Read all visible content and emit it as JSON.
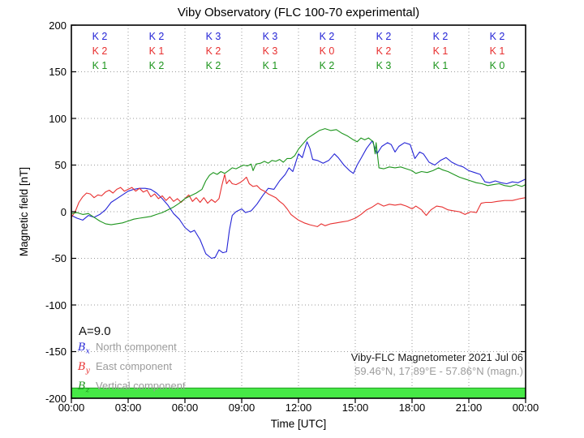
{
  "colors": {
    "blue": "#2424d6",
    "red": "#e83030",
    "green": "#1d951d",
    "bar_green": "#46e846",
    "bar_green_edge": "#1f9e1f",
    "grid": "#9a9a9a",
    "frame": "#000000"
  },
  "chart_data": {
    "type": "line",
    "title": "Viby Observatory (FLC 100-70 experimental)",
    "xlabel": "Time [UTC]",
    "ylabel": "Magnetic field [nT]",
    "xlim_hours": [
      0,
      24
    ],
    "ylim": [
      -200,
      200
    ],
    "grid": "dotted",
    "legend_position": "lower-left",
    "xtick_hours": [
      0,
      3,
      6,
      9,
      12,
      15,
      18,
      21,
      24
    ],
    "xtick_labels": [
      "00:00",
      "03:00",
      "06:00",
      "09:00",
      "12:00",
      "15:00",
      "18:00",
      "21:00",
      "00:00"
    ],
    "ytick_values": [
      200,
      150,
      100,
      50,
      0,
      -50,
      -100,
      -150,
      -200
    ],
    "ytick_labels": [
      "200",
      "150",
      "100",
      "50",
      "0",
      "-50",
      "-100",
      "-150",
      "-200"
    ],
    "a_index_label": "A=9.0",
    "k_index_rows": [
      {
        "series": "Bx",
        "color_key": "blue",
        "values": [
          "K 2",
          "K 2",
          "K 3",
          "K 3",
          "K 2",
          "K 2",
          "K 2",
          "K 2"
        ]
      },
      {
        "series": "By",
        "color_key": "red",
        "values": [
          "K 2",
          "K 1",
          "K 2",
          "K 3",
          "K 0",
          "K 2",
          "K 1",
          "K 1"
        ]
      },
      {
        "series": "Bz",
        "color_key": "green",
        "values": [
          "K 1",
          "K 2",
          "K 2",
          "K 1",
          "K 2",
          "K 3",
          "K 1",
          "K 0"
        ]
      }
    ],
    "legend": [
      {
        "symbol": "B",
        "sub": "x",
        "label": "North component",
        "color_key": "blue"
      },
      {
        "symbol": "B",
        "sub": "y",
        "label": "East component",
        "color_key": "red"
      },
      {
        "symbol": "B",
        "sub": "z",
        "label": "Vertical component",
        "color_key": "green"
      }
    ],
    "annotation_lines": [
      "Viby-FLC Magnetometer 2021 Jul 06",
      "59.46°N, 17.89°E - 57.86°N (magn.)"
    ],
    "availability_bar": {
      "color_key": "bar_green",
      "x_hours": [
        0,
        24
      ],
      "y_range_nT": [
        -200,
        -189
      ]
    },
    "series": [
      {
        "name": "Bx North component",
        "color_key": "blue",
        "points": [
          [
            0,
            -4
          ],
          [
            0.3,
            -7
          ],
          [
            0.6,
            -9
          ],
          [
            0.9,
            -4
          ],
          [
            1.2,
            -6
          ],
          [
            1.5,
            -3
          ],
          [
            1.8,
            2
          ],
          [
            2.1,
            10
          ],
          [
            2.4,
            14
          ],
          [
            2.7,
            18
          ],
          [
            3,
            22
          ],
          [
            3.3,
            24
          ],
          [
            3.6,
            25
          ],
          [
            3.9,
            25
          ],
          [
            4.2,
            24
          ],
          [
            4.5,
            20
          ],
          [
            4.8,
            14
          ],
          [
            5.1,
            7
          ],
          [
            5.4,
            -2
          ],
          [
            5.7,
            -8
          ],
          [
            6,
            -17
          ],
          [
            6.3,
            -22
          ],
          [
            6.5,
            -20
          ],
          [
            6.8,
            -30
          ],
          [
            7.1,
            -45
          ],
          [
            7.4,
            -50
          ],
          [
            7.6,
            -49
          ],
          [
            7.8,
            -41
          ],
          [
            8,
            -44
          ],
          [
            8.2,
            -43
          ],
          [
            8.35,
            -20
          ],
          [
            8.5,
            -4
          ],
          [
            8.7,
            0
          ],
          [
            9,
            3
          ],
          [
            9.2,
            -1
          ],
          [
            9.5,
            1
          ],
          [
            9.8,
            8
          ],
          [
            10.1,
            17
          ],
          [
            10.4,
            25
          ],
          [
            10.7,
            24
          ],
          [
            11,
            33
          ],
          [
            11.3,
            40
          ],
          [
            11.5,
            47
          ],
          [
            11.7,
            43
          ],
          [
            12,
            62
          ],
          [
            12.2,
            58
          ],
          [
            12.45,
            75
          ],
          [
            12.6,
            68
          ],
          [
            12.75,
            56
          ],
          [
            13,
            55
          ],
          [
            13.3,
            52
          ],
          [
            13.6,
            55
          ],
          [
            13.9,
            62
          ],
          [
            14.1,
            58
          ],
          [
            14.4,
            50
          ],
          [
            14.7,
            44
          ],
          [
            14.9,
            41
          ],
          [
            15.1,
            50
          ],
          [
            15.3,
            57
          ],
          [
            15.6,
            68
          ],
          [
            15.9,
            76
          ],
          [
            16.15,
            62
          ],
          [
            16.4,
            70
          ],
          [
            16.7,
            74
          ],
          [
            16.9,
            72
          ],
          [
            17.1,
            64
          ],
          [
            17.3,
            70
          ],
          [
            17.6,
            74
          ],
          [
            17.9,
            72
          ],
          [
            18.15,
            57
          ],
          [
            18.4,
            64
          ],
          [
            18.6,
            62
          ],
          [
            18.9,
            53
          ],
          [
            19.2,
            50
          ],
          [
            19.5,
            55
          ],
          [
            19.8,
            58
          ],
          [
            20.1,
            53
          ],
          [
            20.4,
            50
          ],
          [
            20.7,
            48
          ],
          [
            21,
            44
          ],
          [
            21.3,
            42
          ],
          [
            21.6,
            40
          ],
          [
            21.85,
            32
          ],
          [
            22.1,
            31
          ],
          [
            22.4,
            33
          ],
          [
            22.7,
            31
          ],
          [
            23,
            30
          ],
          [
            23.3,
            32
          ],
          [
            23.6,
            31
          ],
          [
            24,
            35
          ]
        ]
      },
      {
        "name": "By East component",
        "color_key": "red",
        "points": [
          [
            0,
            -6
          ],
          [
            0.2,
            0
          ],
          [
            0.4,
            10
          ],
          [
            0.6,
            16
          ],
          [
            0.8,
            20
          ],
          [
            1,
            19
          ],
          [
            1.2,
            15
          ],
          [
            1.4,
            18
          ],
          [
            1.6,
            17
          ],
          [
            1.8,
            21
          ],
          [
            2,
            23
          ],
          [
            2.2,
            20
          ],
          [
            2.4,
            24
          ],
          [
            2.6,
            26
          ],
          [
            2.8,
            22
          ],
          [
            3,
            24
          ],
          [
            3.2,
            26
          ],
          [
            3.4,
            22
          ],
          [
            3.6,
            25
          ],
          [
            3.8,
            21
          ],
          [
            4,
            23
          ],
          [
            4.2,
            16
          ],
          [
            4.4,
            19
          ],
          [
            4.6,
            14
          ],
          [
            4.8,
            17
          ],
          [
            5,
            12
          ],
          [
            5.2,
            16
          ],
          [
            5.4,
            11
          ],
          [
            5.6,
            14
          ],
          [
            5.8,
            10
          ],
          [
            6,
            14
          ],
          [
            6.2,
            18
          ],
          [
            6.4,
            11
          ],
          [
            6.6,
            15
          ],
          [
            6.8,
            10
          ],
          [
            7,
            15
          ],
          [
            7.2,
            9
          ],
          [
            7.4,
            13
          ],
          [
            7.6,
            10
          ],
          [
            7.8,
            14
          ],
          [
            7.95,
            28
          ],
          [
            8.1,
            40
          ],
          [
            8.2,
            30
          ],
          [
            8.35,
            34
          ],
          [
            8.5,
            30
          ],
          [
            8.7,
            29
          ],
          [
            8.9,
            31
          ],
          [
            9.1,
            34
          ],
          [
            9.25,
            37
          ],
          [
            9.4,
            30
          ],
          [
            9.6,
            27
          ],
          [
            9.8,
            28
          ],
          [
            10,
            24
          ],
          [
            10.2,
            22
          ],
          [
            10.4,
            19
          ],
          [
            10.6,
            17
          ],
          [
            10.8,
            15
          ],
          [
            11,
            11
          ],
          [
            11.2,
            8
          ],
          [
            11.4,
            3
          ],
          [
            11.6,
            -3
          ],
          [
            11.8,
            -6
          ],
          [
            12,
            -9
          ],
          [
            12.3,
            -12
          ],
          [
            12.6,
            -14
          ],
          [
            13,
            -16
          ],
          [
            13.2,
            -13
          ],
          [
            13.4,
            -15
          ],
          [
            13.7,
            -13
          ],
          [
            14,
            -12
          ],
          [
            14.3,
            -11
          ],
          [
            14.6,
            -10
          ],
          [
            15,
            -7
          ],
          [
            15.3,
            -3
          ],
          [
            15.6,
            2
          ],
          [
            15.9,
            5
          ],
          [
            16.2,
            9
          ],
          [
            16.5,
            6
          ],
          [
            16.8,
            8
          ],
          [
            17.1,
            7
          ],
          [
            17.4,
            8
          ],
          [
            17.7,
            6
          ],
          [
            18,
            3
          ],
          [
            18.2,
            6
          ],
          [
            18.5,
            2
          ],
          [
            18.75,
            -4
          ],
          [
            19,
            2
          ],
          [
            19.3,
            6
          ],
          [
            19.6,
            5
          ],
          [
            19.9,
            2
          ],
          [
            20.2,
            1
          ],
          [
            20.5,
            0
          ],
          [
            20.8,
            -3
          ],
          [
            21.1,
            0
          ],
          [
            21.4,
            -1
          ],
          [
            21.65,
            9
          ],
          [
            21.9,
            10
          ],
          [
            22.2,
            10
          ],
          [
            22.5,
            11
          ],
          [
            22.9,
            12
          ],
          [
            23.3,
            12
          ],
          [
            23.7,
            14
          ],
          [
            24,
            15
          ]
        ]
      },
      {
        "name": "Bz Vertical component",
        "color_key": "green",
        "points": [
          [
            0,
            -2
          ],
          [
            0.3,
            -1
          ],
          [
            0.6,
            -3
          ],
          [
            0.9,
            -2
          ],
          [
            1.2,
            -6
          ],
          [
            1.5,
            -10
          ],
          [
            1.8,
            -13
          ],
          [
            2.1,
            -14
          ],
          [
            2.4,
            -13
          ],
          [
            2.7,
            -12
          ],
          [
            3,
            -10
          ],
          [
            3.3,
            -8
          ],
          [
            3.6,
            -7
          ],
          [
            3.9,
            -6
          ],
          [
            4.2,
            -5
          ],
          [
            4.5,
            -3
          ],
          [
            4.8,
            -1
          ],
          [
            5.1,
            2
          ],
          [
            5.4,
            5
          ],
          [
            5.7,
            9
          ],
          [
            6,
            14
          ],
          [
            6.3,
            17
          ],
          [
            6.6,
            20
          ],
          [
            6.9,
            24
          ],
          [
            7.1,
            33
          ],
          [
            7.3,
            39
          ],
          [
            7.5,
            42
          ],
          [
            7.7,
            40
          ],
          [
            7.9,
            43
          ],
          [
            8.1,
            41
          ],
          [
            8.3,
            44
          ],
          [
            8.5,
            47
          ],
          [
            8.7,
            46
          ],
          [
            8.9,
            48
          ],
          [
            9.1,
            50
          ],
          [
            9.3,
            49
          ],
          [
            9.5,
            51
          ],
          [
            9.6,
            44
          ],
          [
            9.75,
            51
          ],
          [
            10,
            52
          ],
          [
            10.2,
            54
          ],
          [
            10.4,
            52
          ],
          [
            10.6,
            55
          ],
          [
            10.8,
            54
          ],
          [
            11,
            56
          ],
          [
            11.2,
            53
          ],
          [
            11.4,
            57
          ],
          [
            11.6,
            57
          ],
          [
            11.8,
            60
          ],
          [
            12,
            67
          ],
          [
            12.2,
            72
          ],
          [
            12.5,
            79
          ],
          [
            12.8,
            83
          ],
          [
            13.1,
            87
          ],
          [
            13.4,
            89
          ],
          [
            13.7,
            87
          ],
          [
            14,
            88
          ],
          [
            14.3,
            84
          ],
          [
            14.6,
            81
          ],
          [
            14.9,
            77
          ],
          [
            15.1,
            75
          ],
          [
            15.3,
            79
          ],
          [
            15.5,
            77
          ],
          [
            15.7,
            79
          ],
          [
            15.95,
            75
          ],
          [
            16.05,
            62
          ],
          [
            16.1,
            74
          ],
          [
            16.25,
            47
          ],
          [
            16.5,
            46
          ],
          [
            16.8,
            48
          ],
          [
            17.1,
            47
          ],
          [
            17.4,
            48
          ],
          [
            17.7,
            46
          ],
          [
            18,
            44
          ],
          [
            18.2,
            41
          ],
          [
            18.5,
            43
          ],
          [
            18.8,
            42
          ],
          [
            19.1,
            44
          ],
          [
            19.4,
            47
          ],
          [
            19.6,
            45
          ],
          [
            19.9,
            43
          ],
          [
            20.2,
            40
          ],
          [
            20.5,
            37
          ],
          [
            20.8,
            35
          ],
          [
            21.1,
            33
          ],
          [
            21.4,
            31
          ],
          [
            21.7,
            30
          ],
          [
            22,
            28
          ],
          [
            22.3,
            29
          ],
          [
            22.6,
            30
          ],
          [
            22.9,
            28
          ],
          [
            23.2,
            27
          ],
          [
            23.5,
            29
          ],
          [
            23.8,
            27
          ],
          [
            24,
            29
          ]
        ]
      }
    ]
  }
}
